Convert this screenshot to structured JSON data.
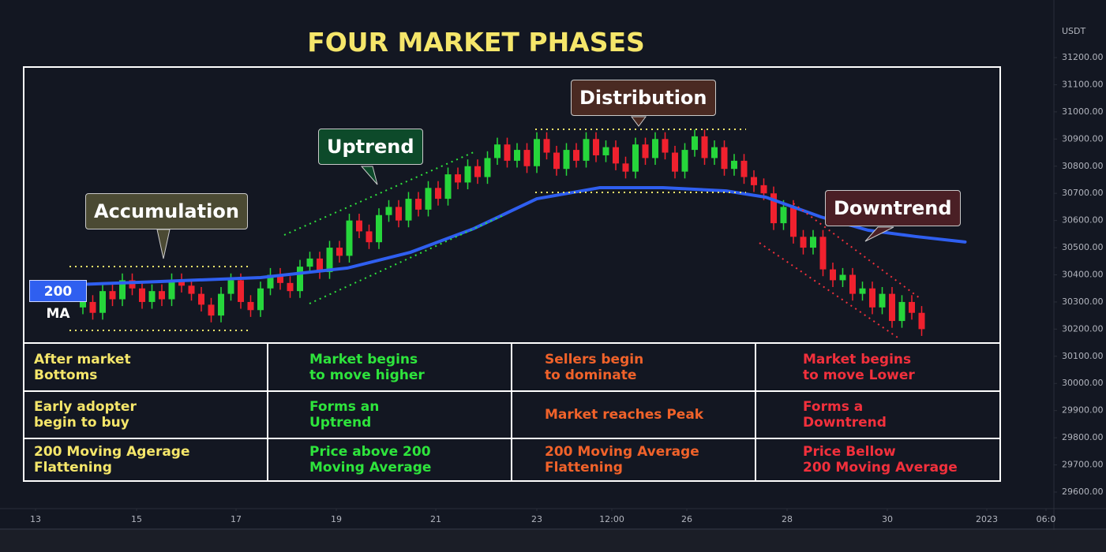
{
  "chart_data": {
    "type": "candlestick",
    "title": "FOUR MARKET PHASES",
    "y_unit": "USDT",
    "ylim": [
      29539,
      31412
    ],
    "xlim": [
      -8.4,
      98.4
    ],
    "yticks": [
      {
        "value": 29600,
        "label": "29600.00"
      },
      {
        "value": 29700,
        "label": "29700.00"
      },
      {
        "value": 29800,
        "label": "29800.00"
      },
      {
        "value": 29900,
        "label": "29900.00"
      },
      {
        "value": 30000,
        "label": "30000.00"
      },
      {
        "value": 30100,
        "label": "30100.00"
      },
      {
        "value": 30200,
        "label": "30200.00"
      },
      {
        "value": 30300,
        "label": "30300.00"
      },
      {
        "value": 30400,
        "label": "30400.00"
      },
      {
        "value": 30500,
        "label": "30500.00"
      },
      {
        "value": 30600,
        "label": "30600.00"
      },
      {
        "value": 30700,
        "label": "30700.00"
      },
      {
        "value": 30800,
        "label": "30800.00"
      },
      {
        "value": 30900,
        "label": "30900.00"
      },
      {
        "value": 31000,
        "label": "31000.00"
      },
      {
        "value": 31100,
        "label": "31100.00"
      },
      {
        "value": 31200,
        "label": "31200.00"
      }
    ],
    "xticks": [
      {
        "value": -4.8,
        "label": "13"
      },
      {
        "value": 5.44,
        "label": "15"
      },
      {
        "value": 15.52,
        "label": "17"
      },
      {
        "value": 25.68,
        "label": "19"
      },
      {
        "value": 35.76,
        "label": "21"
      },
      {
        "value": 46,
        "label": "23"
      },
      {
        "value": 53.6,
        "label": "12:00"
      },
      {
        "value": 61.2,
        "label": "26"
      },
      {
        "value": 71.36,
        "label": "28"
      },
      {
        "value": 81.52,
        "label": "30"
      },
      {
        "value": 91.6,
        "label": "2023"
      },
      {
        "value": 97.6,
        "label": "06:0"
      }
    ],
    "up_color": "#26d63b",
    "down_color": "#f0212e",
    "open": [
      30280,
      30300,
      30260,
      30340,
      30310,
      30380,
      30350,
      30300,
      30340,
      30310,
      30380,
      30360,
      30330,
      30290,
      30250,
      30330,
      30380,
      30300,
      30270,
      30350,
      30400,
      30370,
      30340,
      30430,
      30460,
      30410,
      30500,
      30470,
      30600,
      30560,
      30520,
      30620,
      30650,
      30600,
      30680,
      30640,
      30720,
      30680,
      30770,
      30740,
      30800,
      30760,
      30830,
      30880,
      30820,
      30860,
      30800,
      30900,
      30850,
      30790,
      30860,
      30820,
      30900,
      30840,
      30870,
      30810,
      30780,
      30880,
      30830,
      30900,
      30850,
      30780,
      30860,
      30910,
      30830,
      30870,
      30790,
      30820,
      30760,
      30730,
      30700,
      30590,
      30650,
      30540,
      30500,
      30540,
      30420,
      30380,
      30400,
      30330,
      30350,
      30280,
      30330,
      30230,
      30300,
      30260
    ],
    "close": [
      30300,
      30260,
      30340,
      30310,
      30380,
      30350,
      30300,
      30340,
      30310,
      30380,
      30360,
      30330,
      30290,
      30250,
      30330,
      30380,
      30300,
      30270,
      30350,
      30400,
      30370,
      30340,
      30430,
      30460,
      30410,
      30500,
      30470,
      30600,
      30560,
      30520,
      30620,
      30650,
      30600,
      30680,
      30640,
      30720,
      30680,
      30770,
      30740,
      30800,
      30760,
      30830,
      30880,
      30820,
      30860,
      30800,
      30900,
      30850,
      30790,
      30860,
      30820,
      30900,
      30840,
      30870,
      30810,
      30780,
      30880,
      30830,
      30900,
      30850,
      30780,
      30860,
      30910,
      30830,
      30870,
      30790,
      30820,
      30760,
      30730,
      30700,
      30590,
      30650,
      30540,
      30500,
      30540,
      30420,
      30380,
      30400,
      30330,
      30350,
      30280,
      30330,
      30230,
      30300,
      30260,
      30200
    ],
    "high": [
      30325,
      30325,
      30365,
      30365,
      30405,
      30405,
      30375,
      30365,
      30365,
      30405,
      30405,
      30385,
      30355,
      30315,
      30355,
      30405,
      30405,
      30325,
      30375,
      30425,
      30425,
      30395,
      30455,
      30485,
      30485,
      30525,
      30525,
      30625,
      30625,
      30585,
      30645,
      30675,
      30675,
      30705,
      30705,
      30745,
      30745,
      30795,
      30795,
      30825,
      30825,
      30855,
      30905,
      30905,
      30885,
      30885,
      30925,
      30925,
      30875,
      30885,
      30885,
      30925,
      30925,
      30895,
      30895,
      30835,
      30905,
      30905,
      30925,
      30925,
      30875,
      30885,
      30935,
      30935,
      30895,
      30895,
      30845,
      30845,
      30785,
      30755,
      30725,
      30675,
      30675,
      30565,
      30565,
      30565,
      30445,
      30425,
      30425,
      30375,
      30375,
      30355,
      30355,
      30325,
      30325,
      30285
    ],
    "low": [
      30255,
      30235,
      30235,
      30285,
      30285,
      30325,
      30275,
      30275,
      30285,
      30285,
      30335,
      30305,
      30265,
      30225,
      30225,
      30305,
      30275,
      30245,
      30245,
      30325,
      30345,
      30315,
      30315,
      30405,
      30385,
      30385,
      30445,
      30445,
      30535,
      30495,
      30495,
      30595,
      30575,
      30575,
      30615,
      30615,
      30655,
      30655,
      30715,
      30715,
      30735,
      30735,
      30805,
      30795,
      30795,
      30775,
      30775,
      30825,
      30765,
      30765,
      30795,
      30795,
      30815,
      30815,
      30785,
      30755,
      30755,
      30805,
      30805,
      30825,
      30755,
      30755,
      30835,
      30805,
      30805,
      30765,
      30765,
      30735,
      30705,
      30675,
      30565,
      30565,
      30515,
      30475,
      30475,
      30395,
      30355,
      30355,
      30305,
      30305,
      30255,
      30255,
      30205,
      30205,
      30235,
      30175
    ],
    "series": [
      {
        "name": "200 MA",
        "color": "#2f5ff0",
        "x": [
          -5.2,
          7.6,
          18,
          26.8,
          33.2,
          39.6,
          46,
          52.4,
          58.8,
          65.2,
          69.2,
          74.8,
          79.6,
          84.4,
          89.4
        ],
        "values": [
          30358,
          30375,
          30390,
          30425,
          30483,
          30570,
          30680,
          30721,
          30721,
          30709,
          30686,
          30613,
          30564,
          30541,
          30521
        ]
      }
    ]
  },
  "phases": [
    {
      "label": "Accumulation",
      "color": "#f5e66a",
      "notes": [
        "After market\nBottoms",
        "Early adopter\nbegin to buy",
        "200 Moving Agerage\nFlattening"
      ]
    },
    {
      "label": "Uptrend",
      "color": "#2ee43c",
      "notes": [
        "Market begins\nto move higher",
        "Forms an\nUptrend",
        "Price above 200\nMoving Average"
      ]
    },
    {
      "label": "Distribution",
      "color": "#f0622a",
      "notes": [
        "Sellers begin\nto dominate",
        "Market reaches Peak",
        "200 Moving Average\nFlattening"
      ]
    },
    {
      "label": "Downtrend",
      "color": "#f2303c",
      "notes": [
        "Market begins\nto move Lower",
        "Forms a\nDowntrend",
        "Price Bellow\n200 Moving Average"
      ]
    }
  ]
}
